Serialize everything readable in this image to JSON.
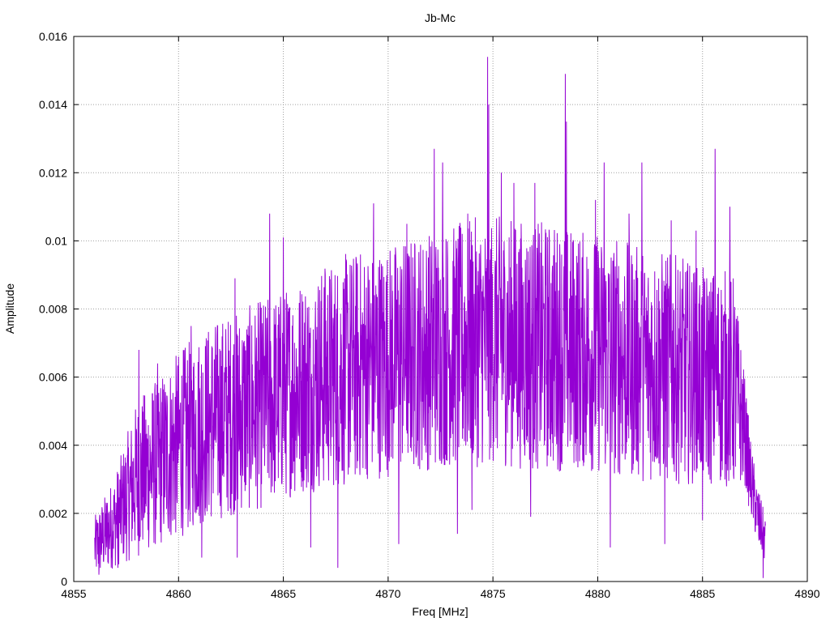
{
  "chart_data": {
    "type": "line",
    "title": "Jb-Mc",
    "xlabel": "Freq [MHz]",
    "ylabel": "Amplitude",
    "xlim": [
      4855,
      4890
    ],
    "ylim": [
      0,
      0.016
    ],
    "grid": true,
    "x_ticks": [
      4855,
      4860,
      4865,
      4870,
      4875,
      4880,
      4885,
      4890
    ],
    "y_ticks": [
      0,
      0.002,
      0.004,
      0.006,
      0.008,
      0.01,
      0.012,
      0.014,
      0.016
    ],
    "y_tick_labels": [
      "0",
      "0.002",
      "0.004",
      "0.006",
      "0.008",
      "0.01",
      "0.012",
      "0.014",
      "0.016"
    ],
    "series": [
      {
        "color": "#9400d3",
        "envelope": {
          "x": [
            4856.0,
            4857.0,
            4858.0,
            4859.0,
            4860.0,
            4861.0,
            4862.0,
            4863.0,
            4864.0,
            4865.0,
            4866.0,
            4867.0,
            4868.0,
            4869.0,
            4870.0,
            4871.0,
            4872.0,
            4873.0,
            4874.0,
            4875.0,
            4876.0,
            4877.0,
            4878.0,
            4879.0,
            4880.0,
            4881.0,
            4882.0,
            4883.0,
            4884.0,
            4885.0,
            4886.0,
            4886.5,
            4887.0,
            4887.3,
            4887.6,
            4888.0
          ],
          "center": [
            0.001,
            0.0018,
            0.003,
            0.0035,
            0.004,
            0.0045,
            0.0048,
            0.005,
            0.0052,
            0.0055,
            0.0058,
            0.006,
            0.0062,
            0.0064,
            0.0065,
            0.0067,
            0.0068,
            0.0069,
            0.007,
            0.0071,
            0.007,
            0.0069,
            0.0069,
            0.0068,
            0.0067,
            0.0066,
            0.0064,
            0.0063,
            0.0062,
            0.006,
            0.006,
            0.0058,
            0.0045,
            0.003,
            0.002,
            0.0012
          ],
          "spread": [
            0.0008,
            0.0012,
            0.002,
            0.0022,
            0.0024,
            0.0025,
            0.0026,
            0.0026,
            0.0027,
            0.0027,
            0.0028,
            0.0029,
            0.003,
            0.003,
            0.003,
            0.003,
            0.0031,
            0.0031,
            0.0032,
            0.0032,
            0.0032,
            0.0032,
            0.0032,
            0.0031,
            0.0031,
            0.0031,
            0.003,
            0.003,
            0.0029,
            0.0028,
            0.0028,
            0.0028,
            0.0014,
            0.001,
            0.0008,
            0.0006
          ]
        },
        "peaks": [
          [
            4874.75,
            0.0154
          ],
          [
            4878.45,
            0.0149
          ],
          [
            4874.8,
            0.014
          ],
          [
            4878.5,
            0.0135
          ],
          [
            4872.2,
            0.0127
          ],
          [
            4885.6,
            0.0127
          ],
          [
            4872.6,
            0.0123
          ],
          [
            4875.4,
            0.012
          ],
          [
            4880.3,
            0.0123
          ],
          [
            4882.1,
            0.0123
          ],
          [
            4876.0,
            0.0117
          ],
          [
            4877.0,
            0.0117
          ],
          [
            4864.35,
            0.0108
          ],
          [
            4869.3,
            0.0111
          ],
          [
            4879.9,
            0.0112
          ],
          [
            4886.3,
            0.011
          ],
          [
            4862.7,
            0.0089
          ],
          [
            4865.0,
            0.0101
          ],
          [
            4873.8,
            0.0108
          ],
          [
            4860.6,
            0.0075
          ],
          [
            4858.1,
            0.0068
          ],
          [
            4859.0,
            0.0064
          ],
          [
            4867.0,
            0.009
          ],
          [
            4868.5,
            0.0092
          ],
          [
            4870.9,
            0.0105
          ],
          [
            4883.5,
            0.0106
          ],
          [
            4884.7,
            0.0103
          ],
          [
            4881.5,
            0.0108
          ]
        ],
        "troughs": [
          [
            4856.2,
            0.0002
          ],
          [
            4857.1,
            0.0004
          ],
          [
            4861.1,
            0.0007
          ],
          [
            4867.6,
            0.0004
          ],
          [
            4870.5,
            0.0011
          ],
          [
            4874.0,
            0.0021
          ],
          [
            4880.6,
            0.001
          ],
          [
            4887.9,
            0.0001
          ],
          [
            4866.3,
            0.001
          ],
          [
            4883.2,
            0.0011
          ],
          [
            4885.0,
            0.0018
          ],
          [
            4876.8,
            0.0019
          ],
          [
            4862.8,
            0.0007
          ],
          [
            4873.3,
            0.0014
          ],
          [
            4887.7,
            0.0012
          ]
        ]
      }
    ]
  }
}
